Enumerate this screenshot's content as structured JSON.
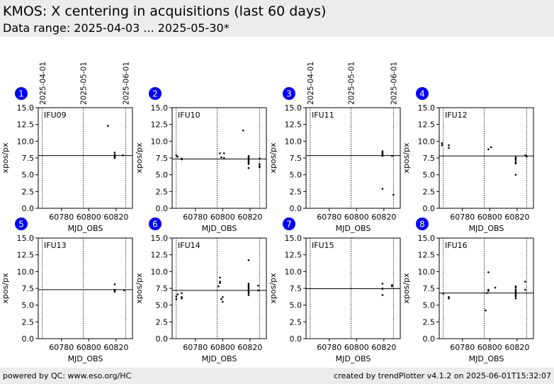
{
  "header": {
    "title": "KMOS: X centering in acquisitions (last 60 days)",
    "subtitle": "Data range: 2025-04-03 ... 2025-05-30*"
  },
  "footer": {
    "left": "powered by QC: www.eso.org/HC",
    "right": "created by trendPlotter v4.1.2 on 2025-06-01T15:32:07"
  },
  "colors": {
    "badge": "#0000ff",
    "badge_text": "#ffffff",
    "points": "#000000",
    "header_bg": "#ececec"
  },
  "chart_data": {
    "type": "scatter",
    "xlabel": "MJD_OBS",
    "ylabel": "xpos/px",
    "xlim": [
      60763,
      60832
    ],
    "ylim": [
      0,
      15
    ],
    "xticks": [
      60780,
      60800,
      60820
    ],
    "yticks": [
      0.0,
      2.5,
      5.0,
      7.5,
      10.0,
      12.5,
      15.0
    ],
    "date_markers": [
      {
        "label": "2025-04-01",
        "x": 60766
      },
      {
        "label": "2025-05-01",
        "x": 60796
      },
      {
        "label": "2025-06-01",
        "x": 60827
      }
    ],
    "panels": [
      {
        "number": "1",
        "name": "IFU09",
        "ref": 7.85,
        "points": [
          [
            60814,
            12.3
          ],
          [
            60819,
            8.3
          ],
          [
            60819,
            8.0
          ],
          [
            60819,
            7.9
          ],
          [
            60819,
            7.8
          ],
          [
            60819,
            7.7
          ],
          [
            60819,
            7.6
          ],
          [
            60819,
            7.5
          ],
          [
            60825,
            7.9
          ]
        ]
      },
      {
        "number": "2",
        "name": "IFU10",
        "ref": 7.35,
        "points": [
          [
            60766,
            7.9
          ],
          [
            60767,
            7.7
          ],
          [
            60770,
            7.4
          ],
          [
            60770,
            7.3
          ],
          [
            60798,
            8.2
          ],
          [
            60799,
            7.6
          ],
          [
            60801,
            8.2
          ],
          [
            60801,
            7.5
          ],
          [
            60815,
            11.6
          ],
          [
            60819,
            7.8
          ],
          [
            60819,
            7.6
          ],
          [
            60819,
            7.5
          ],
          [
            60819,
            7.4
          ],
          [
            60819,
            7.2
          ],
          [
            60819,
            7.0
          ],
          [
            60819,
            6.8
          ],
          [
            60819,
            6.6
          ],
          [
            60819,
            6.0
          ],
          [
            60827,
            7.4
          ],
          [
            60827,
            6.6
          ],
          [
            60827,
            6.3
          ],
          [
            60827,
            6.1
          ]
        ]
      },
      {
        "number": "3",
        "name": "IFU11",
        "ref": 7.85,
        "points": [
          [
            60819,
            8.5
          ],
          [
            60819,
            8.3
          ],
          [
            60819,
            8.2
          ],
          [
            60819,
            8.0
          ],
          [
            60819,
            7.9
          ],
          [
            60819,
            7.8
          ],
          [
            60819,
            2.9
          ],
          [
            60826,
            7.8
          ],
          [
            60827,
            2.0
          ]
        ]
      },
      {
        "number": "4",
        "name": "IFU12",
        "ref": 7.8,
        "points": [
          [
            60765,
            9.7
          ],
          [
            60765,
            9.4
          ],
          [
            60770,
            9.4
          ],
          [
            60770,
            9.0
          ],
          [
            60799,
            8.8
          ],
          [
            60801,
            9.1
          ],
          [
            60819,
            7.6
          ],
          [
            60819,
            7.4
          ],
          [
            60819,
            7.2
          ],
          [
            60819,
            6.9
          ],
          [
            60819,
            6.7
          ],
          [
            60819,
            5.0
          ],
          [
            60826,
            7.9
          ],
          [
            60827,
            7.7
          ]
        ]
      },
      {
        "number": "5",
        "name": "IFU13",
        "ref": 7.3,
        "points": [
          [
            60819,
            8.1
          ],
          [
            60819,
            7.3
          ],
          [
            60819,
            7.2
          ],
          [
            60819,
            7.1
          ],
          [
            60819,
            7.0
          ],
          [
            60826,
            7.2
          ]
        ]
      },
      {
        "number": "6",
        "name": "IFU14",
        "ref": 7.2,
        "points": [
          [
            60766,
            6.3
          ],
          [
            60766,
            5.9
          ],
          [
            60767,
            6.6
          ],
          [
            60770,
            6.8
          ],
          [
            60770,
            6.2
          ],
          [
            60770,
            6.0
          ],
          [
            60797,
            7.8
          ],
          [
            60798,
            9.1
          ],
          [
            60798,
            8.5
          ],
          [
            60798,
            8.3
          ],
          [
            60799,
            5.9
          ],
          [
            60800,
            6.2
          ],
          [
            60800,
            5.5
          ],
          [
            60819,
            11.7
          ],
          [
            60819,
            8.2
          ],
          [
            60819,
            8.0
          ],
          [
            60819,
            7.8
          ],
          [
            60819,
            7.6
          ],
          [
            60819,
            7.4
          ],
          [
            60819,
            7.2
          ],
          [
            60819,
            7.0
          ],
          [
            60819,
            6.8
          ],
          [
            60819,
            6.5
          ],
          [
            60826,
            7.9
          ],
          [
            60826,
            7.2
          ]
        ]
      },
      {
        "number": "7",
        "name": "IFU15",
        "ref": 7.45,
        "points": [
          [
            60819,
            8.2
          ],
          [
            60819,
            7.5
          ],
          [
            60819,
            7.4
          ],
          [
            60819,
            6.5
          ],
          [
            60826,
            8.0
          ],
          [
            60826,
            7.8
          ]
        ]
      },
      {
        "number": "8",
        "name": "IFU16",
        "ref": 6.8,
        "points": [
          [
            60766,
            6.7
          ],
          [
            60770,
            6.2
          ],
          [
            60770,
            6.0
          ],
          [
            60797,
            4.2
          ],
          [
            60798,
            6.8
          ],
          [
            60799,
            9.9
          ],
          [
            60799,
            7.3
          ],
          [
            60799,
            7.1
          ],
          [
            60804,
            7.6
          ],
          [
            60819,
            7.8
          ],
          [
            60819,
            7.6
          ],
          [
            60819,
            7.3
          ],
          [
            60819,
            7.1
          ],
          [
            60819,
            6.9
          ],
          [
            60819,
            6.7
          ],
          [
            60819,
            6.5
          ],
          [
            60819,
            6.3
          ],
          [
            60819,
            6.0
          ],
          [
            60826,
            8.5
          ],
          [
            60826,
            7.3
          ]
        ]
      }
    ]
  }
}
